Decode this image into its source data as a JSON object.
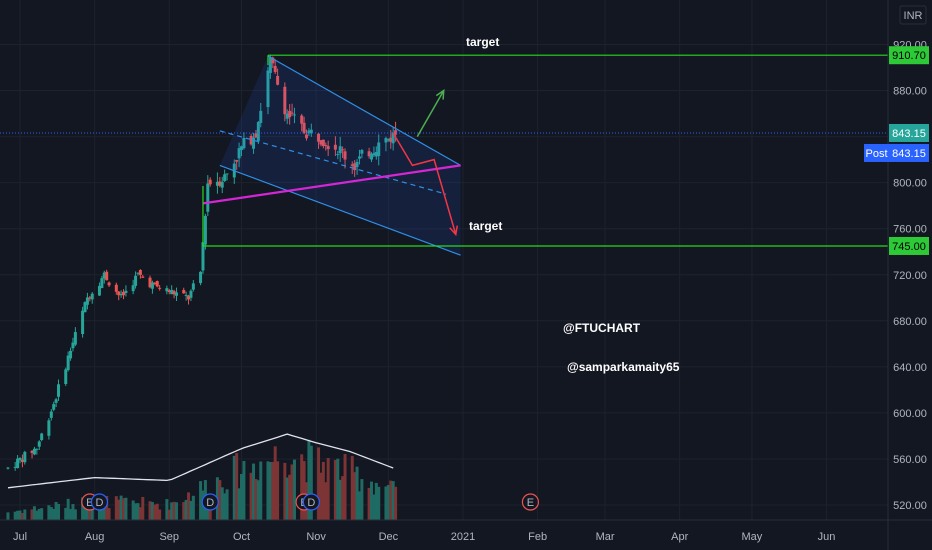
{
  "currency": "INR",
  "colors": {
    "background": "#131722",
    "grid": "#1e222d",
    "candle_up": "#26a69a",
    "candle_down": "#ef5350",
    "volume_up": "#1f6b63",
    "volume_down": "#7c3434",
    "target_line": "#26d91d",
    "support_line": "#d426d4",
    "channel": "#2f8fe8",
    "price_label": "#2962ff"
  },
  "chart_data": {
    "type": "candlestick",
    "ylim": [
      510,
      925
    ],
    "y_ticks": [
      520,
      560,
      600,
      640,
      680,
      720,
      760,
      800,
      840,
      880,
      920
    ],
    "x_ticks": [
      {
        "label": "Jul",
        "date": "2020-07-01"
      },
      {
        "label": "Aug",
        "date": "2020-08-01"
      },
      {
        "label": "Sep",
        "date": "2020-09-01"
      },
      {
        "label": "Oct",
        "date": "2020-10-01"
      },
      {
        "label": "Nov",
        "date": "2020-11-01"
      },
      {
        "label": "Dec",
        "date": "2020-12-01"
      },
      {
        "label": "2021",
        "date": "2021-01-01"
      },
      {
        "label": "Feb",
        "date": "2021-02-01"
      },
      {
        "label": "Mar",
        "date": "2021-03-01"
      },
      {
        "label": "Apr",
        "date": "2021-04-01"
      },
      {
        "label": "May",
        "date": "2021-05-01"
      },
      {
        "label": "Jun",
        "date": "2021-06-01"
      }
    ],
    "price_path": [
      {
        "date": "2020-06-26",
        "close": 552
      },
      {
        "date": "2020-07-08",
        "close": 570
      },
      {
        "date": "2020-07-15",
        "close": 608
      },
      {
        "date": "2020-07-22",
        "close": 655
      },
      {
        "date": "2020-07-29",
        "close": 700
      },
      {
        "date": "2020-08-05",
        "close": 720
      },
      {
        "date": "2020-08-12",
        "close": 700
      },
      {
        "date": "2020-08-19",
        "close": 720
      },
      {
        "date": "2020-08-26",
        "close": 710
      },
      {
        "date": "2020-09-02",
        "close": 705
      },
      {
        "date": "2020-09-09",
        "close": 700
      },
      {
        "date": "2020-09-14",
        "close": 722
      },
      {
        "date": "2020-09-17",
        "close": 800
      },
      {
        "date": "2020-09-24",
        "close": 805
      },
      {
        "date": "2020-10-01",
        "close": 830
      },
      {
        "date": "2020-10-07",
        "close": 845
      },
      {
        "date": "2020-10-13",
        "close": 905
      },
      {
        "date": "2020-10-20",
        "close": 860
      },
      {
        "date": "2020-10-27",
        "close": 845
      },
      {
        "date": "2020-11-03",
        "close": 840
      },
      {
        "date": "2020-11-10",
        "close": 830
      },
      {
        "date": "2020-11-17",
        "close": 815
      },
      {
        "date": "2020-11-24",
        "close": 830
      },
      {
        "date": "2020-12-01",
        "close": 838
      },
      {
        "date": "2020-12-04",
        "close": 843.15
      }
    ],
    "volume_level_path": [
      {
        "date": "2020-06-26",
        "level": 0.05
      },
      {
        "date": "2020-08-01",
        "level": 0.12
      },
      {
        "date": "2020-09-01",
        "level": 0.1
      },
      {
        "date": "2020-10-01",
        "level": 0.32
      },
      {
        "date": "2020-10-20",
        "level": 0.42
      },
      {
        "date": "2020-11-01",
        "level": 0.36
      },
      {
        "date": "2020-11-15",
        "level": 0.3
      },
      {
        "date": "2020-12-04",
        "level": 0.18
      }
    ],
    "event_markers": [
      {
        "label": "E",
        "date": "2020-07-30"
      },
      {
        "label": "D",
        "date": "2020-08-03"
      },
      {
        "label": "D",
        "date": "2020-09-18"
      },
      {
        "label": "E",
        "date": "2020-10-27"
      },
      {
        "label": "D",
        "date": "2020-10-30"
      },
      {
        "label": "E",
        "date": "2021-01-29"
      }
    ],
    "annotations": {
      "upper_target": {
        "label": "target",
        "price": 910.7,
        "start": "2020-10-12"
      },
      "lower_target": {
        "label": "target",
        "price": 745.0,
        "start": "2020-09-15"
      },
      "support_line": {
        "start": {
          "date": "2020-09-15",
          "price": 782
        },
        "end": {
          "date": "2020-12-31",
          "price": 815
        }
      },
      "channel_upper": {
        "start": {
          "date": "2020-10-12",
          "price": 910
        },
        "end": {
          "date": "2020-12-31",
          "price": 815
        }
      },
      "channel_lower": {
        "start": {
          "date": "2020-09-22",
          "price": 815
        },
        "end": {
          "date": "2020-12-31",
          "price": 737
        }
      },
      "channel_mid": {
        "start": {
          "date": "2020-09-22",
          "price": 845
        },
        "end": {
          "date": "2020-12-25",
          "price": 790
        }
      },
      "bull_arrow": [
        {
          "date": "2020-12-13",
          "price": 840
        },
        {
          "date": "2020-12-24",
          "price": 880
        }
      ],
      "bear_arrow": [
        {
          "date": "2020-12-03",
          "price": 843
        },
        {
          "date": "2020-12-11",
          "price": 815
        },
        {
          "date": "2020-12-20",
          "price": 820
        },
        {
          "date": "2020-12-29",
          "price": 755
        }
      ]
    },
    "price_labels": [
      {
        "text": "910.70",
        "price": 910.7,
        "kind": "green"
      },
      {
        "text": "843.15",
        "price": 843.15,
        "kind": "teal"
      },
      {
        "text": "843.15",
        "price": 843.15,
        "kind": "post",
        "prefix": "Post"
      },
      {
        "text": "745.00",
        "price": 745.0,
        "kind": "green"
      }
    ],
    "last_price": 843.15
  },
  "watermarks": [
    "@FTUCHART",
    "@samparkamaity65"
  ]
}
